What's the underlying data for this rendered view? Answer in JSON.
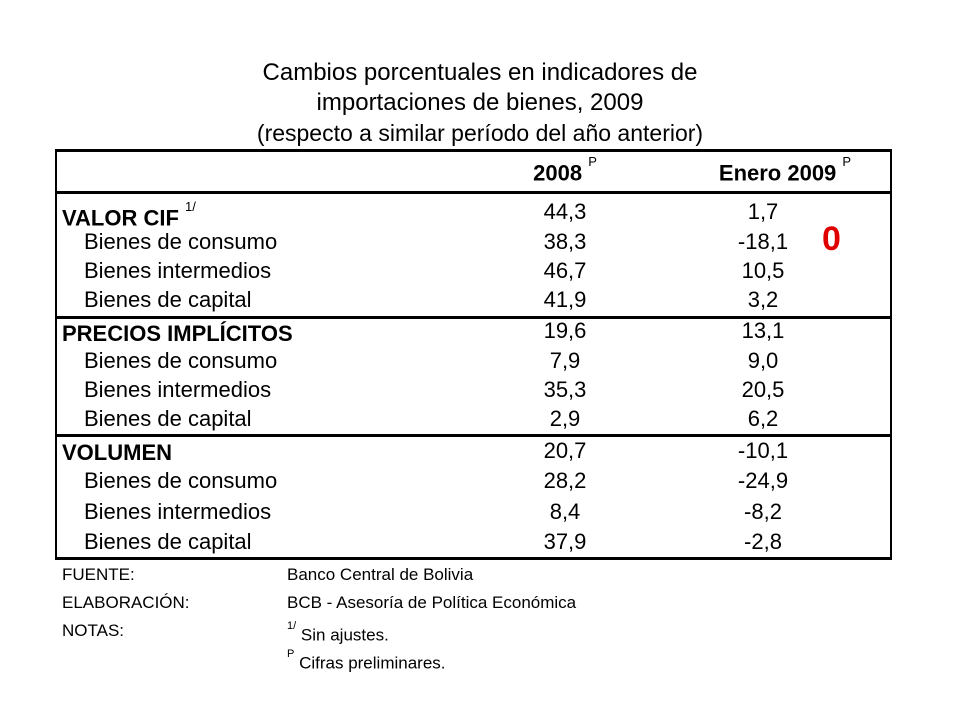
{
  "title": {
    "line1": "Cambios porcentuales en indicadores de",
    "line2": "importaciones de bienes, 2009",
    "line3": "(respecto a similar período del año anterior)"
  },
  "headers": {
    "col1": "2008",
    "col1_sup": "P",
    "col2": "Enero 2009",
    "col2_sup": "P"
  },
  "sections": [
    {
      "label": "VALOR CIF",
      "sup": "1/",
      "v1": "44,3",
      "v2": "1,7",
      "rows": [
        {
          "label": "Bienes de consumo",
          "v1": "38,3",
          "v2": "-18,1"
        },
        {
          "label": "Bienes intermedios",
          "v1": "46,7",
          "v2": "10,5"
        },
        {
          "label": "Bienes de capital",
          "v1": "41,9",
          "v2": "3,2"
        }
      ]
    },
    {
      "label": "PRECIOS IMPLÍCITOS",
      "sup": "",
      "v1": "19,6",
      "v2": "13,1",
      "rows": [
        {
          "label": "Bienes de consumo",
          "v1": "7,9",
          "v2": "9,0"
        },
        {
          "label": "Bienes intermedios",
          "v1": "35,3",
          "v2": "20,5"
        },
        {
          "label": "Bienes de capital",
          "v1": "2,9",
          "v2": "6,2"
        }
      ]
    },
    {
      "label": "VOLUMEN",
      "sup": "",
      "v1": "20,7",
      "v2": "-10,1",
      "rows": [
        {
          "label": "Bienes de consumo",
          "v1": "28,2",
          "v2": "-24,9"
        },
        {
          "label": "Bienes intermedios",
          "v1": "8,4",
          "v2": "-8,2"
        },
        {
          "label": "Bienes de capital",
          "v1": "37,9",
          "v2": "-2,8"
        }
      ]
    }
  ],
  "annotation": "0",
  "annotation_color": "#e00000",
  "footer": {
    "fuente_label": "FUENTE:",
    "fuente_value": "Banco Central de Bolivia",
    "elab_label": "ELABORACIÓN:",
    "elab_value": "BCB - Asesoría de Política Económica",
    "notas_label": "NOTAS:",
    "note1_sup": "1/",
    "note1": "Sin ajustes.",
    "note2_sup": "P",
    "note2": "Cifras preliminares."
  }
}
